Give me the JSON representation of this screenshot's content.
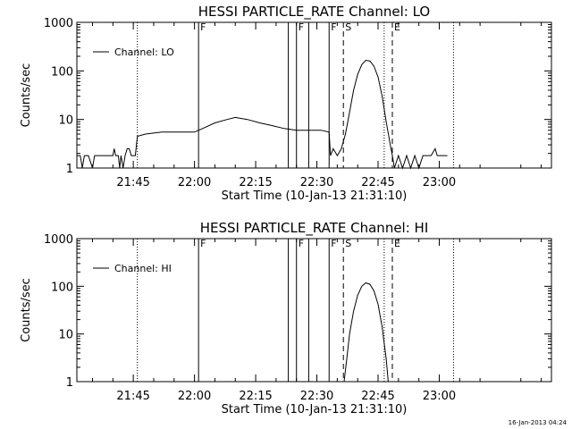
{
  "chart_data": [
    {
      "type": "line",
      "title": "HESSI PARTICLE_RATE Channel: LO",
      "xlabel": "Start Time (10-Jan-13 21:31:10)",
      "ylabel": "Counts/sec",
      "y_scale": "log",
      "ylim": [
        1,
        1000
      ],
      "xlim": [
        "21:31:10",
        "23:27:30"
      ],
      "x_ticks": [
        "21:45",
        "22:00",
        "22:15",
        "22:30",
        "22:45",
        "23:00"
      ],
      "y_ticks": [
        "1",
        "10",
        "100",
        "1000"
      ],
      "legend": {
        "entries": [
          "Channel: LO"
        ],
        "position": "top-left"
      },
      "grid": false,
      "series": [
        {
          "name": "Channel: LO",
          "points": [
            [
              "21:31:10",
              1.8
            ],
            [
              "21:32:00",
              1.8
            ],
            [
              "21:32:30",
              1
            ],
            [
              "21:33:00",
              1.8
            ],
            [
              "21:34:00",
              1.8
            ],
            [
              "21:35:00",
              1
            ],
            [
              "21:35:30",
              1.8
            ],
            [
              "21:40:00",
              1.8
            ],
            [
              "21:40:20",
              2.5
            ],
            [
              "21:40:40",
              1.8
            ],
            [
              "21:41:20",
              1.8
            ],
            [
              "21:41:40",
              1
            ],
            [
              "21:42:00",
              1.8
            ],
            [
              "21:42:30",
              1
            ],
            [
              "21:43:00",
              1.8
            ],
            [
              "21:43:30",
              2.5
            ],
            [
              "21:44:00",
              2.5
            ],
            [
              "21:44:30",
              1.8
            ],
            [
              "21:45:30",
              1.8
            ],
            [
              "21:46:00",
              4.5
            ],
            [
              "21:48:00",
              5
            ],
            [
              "21:52:00",
              5.5
            ],
            [
              "21:56:00",
              5.5
            ],
            [
              "22:00:00",
              5.5
            ],
            [
              "22:02:00",
              6.5
            ],
            [
              "22:05:00",
              8.5
            ],
            [
              "22:08:00",
              10
            ],
            [
              "22:10:00",
              11
            ],
            [
              "22:13:00",
              10
            ],
            [
              "22:16:00",
              8.5
            ],
            [
              "22:19:00",
              7.5
            ],
            [
              "22:22:00",
              6.5
            ],
            [
              "22:25:00",
              6
            ],
            [
              "22:28:00",
              6
            ],
            [
              "22:31:00",
              6
            ],
            [
              "22:33:00",
              5.5
            ],
            [
              "22:33:20",
              1.8
            ],
            [
              "22:34:00",
              2.5
            ],
            [
              "22:35:00",
              1.8
            ],
            [
              "22:36:00",
              2.5
            ],
            [
              "22:37:00",
              5
            ],
            [
              "22:38:00",
              14
            ],
            [
              "22:39:00",
              40
            ],
            [
              "22:40:00",
              85
            ],
            [
              "22:41:00",
              135
            ],
            [
              "22:42:00",
              165
            ],
            [
              "22:43:00",
              160
            ],
            [
              "22:44:00",
              125
            ],
            [
              "22:45:00",
              75
            ],
            [
              "22:46:00",
              30
            ],
            [
              "22:47:00",
              9
            ],
            [
              "22:48:00",
              3
            ],
            [
              "22:48:30",
              1.8
            ],
            [
              "22:49:00",
              1
            ],
            [
              "22:50:00",
              1.8
            ],
            [
              "22:51:00",
              1
            ],
            [
              "22:52:00",
              1.8
            ],
            [
              "22:53:00",
              1
            ],
            [
              "22:54:00",
              1.8
            ],
            [
              "22:55:00",
              1
            ],
            [
              "22:56:00",
              1.8
            ],
            [
              "22:58:00",
              1.8
            ],
            [
              "22:59:00",
              2.5
            ],
            [
              "22:59:30",
              1.8
            ],
            [
              "23:02:00",
              1.8
            ]
          ]
        }
      ],
      "markers": [
        {
          "label": "",
          "time": "21:46:00",
          "style": "dotted"
        },
        {
          "label": "F",
          "time": "22:01:00",
          "style": "solid"
        },
        {
          "label": "",
          "time": "22:23:00",
          "style": "solid"
        },
        {
          "label": "F",
          "time": "22:25:00",
          "style": "solid"
        },
        {
          "label": "",
          "time": "22:28:00",
          "style": "solid"
        },
        {
          "label": "F",
          "time": "22:33:00",
          "style": "solid"
        },
        {
          "label": "S",
          "time": "22:36:30",
          "style": "dashed"
        },
        {
          "label": "",
          "time": "22:46:30",
          "style": "dotted"
        },
        {
          "label": "E",
          "time": "22:48:30",
          "style": "dashed"
        },
        {
          "label": "",
          "time": "23:03:30",
          "style": "dotted"
        }
      ]
    },
    {
      "type": "line",
      "title": "HESSI PARTICLE_RATE Channel: HI",
      "xlabel": "Start Time (10-Jan-13 21:31:10)",
      "ylabel": "Counts/sec",
      "y_scale": "log",
      "ylim": [
        1,
        1000
      ],
      "xlim": [
        "21:31:10",
        "23:27:30"
      ],
      "x_ticks": [
        "21:45",
        "22:00",
        "22:15",
        "22:30",
        "22:45",
        "23:00"
      ],
      "y_ticks": [
        "1",
        "10",
        "100",
        "1000"
      ],
      "legend": {
        "entries": [
          "Channel: HI"
        ],
        "position": "top-left"
      },
      "grid": false,
      "series": [
        {
          "name": "Channel: HI",
          "points": [
            [
              "22:36:40",
              1
            ],
            [
              "22:37:20",
              3
            ],
            [
              "22:38:00",
              10
            ],
            [
              "22:39:00",
              30
            ],
            [
              "22:40:00",
              65
            ],
            [
              "22:41:00",
              100
            ],
            [
              "22:42:00",
              118
            ],
            [
              "22:43:00",
              110
            ],
            [
              "22:44:00",
              80
            ],
            [
              "22:45:00",
              42
            ],
            [
              "22:46:00",
              14
            ],
            [
              "22:47:00",
              3
            ],
            [
              "22:47:30",
              1
            ]
          ]
        }
      ],
      "markers": [
        {
          "label": "",
          "time": "21:46:00",
          "style": "dotted"
        },
        {
          "label": "F",
          "time": "22:01:00",
          "style": "solid"
        },
        {
          "label": "",
          "time": "22:23:00",
          "style": "solid"
        },
        {
          "label": "F",
          "time": "22:25:00",
          "style": "solid"
        },
        {
          "label": "",
          "time": "22:28:00",
          "style": "solid"
        },
        {
          "label": "F",
          "time": "22:33:00",
          "style": "solid"
        },
        {
          "label": "S",
          "time": "22:36:30",
          "style": "dashed"
        },
        {
          "label": "",
          "time": "22:46:30",
          "style": "dotted"
        },
        {
          "label": "E",
          "time": "22:48:30",
          "style": "dashed"
        },
        {
          "label": "",
          "time": "23:03:30",
          "style": "dotted"
        }
      ]
    }
  ],
  "footer_stamp": "16-Jan-2013 04:24"
}
